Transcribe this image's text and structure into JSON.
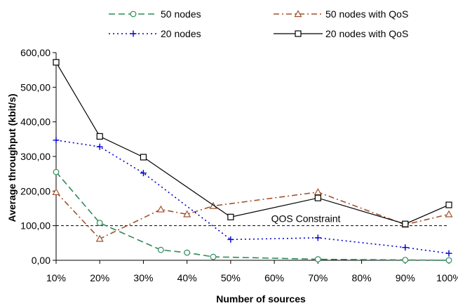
{
  "chart_data": {
    "type": "line",
    "xlabel": "Number of sources",
    "ylabel": "Average throughput (kbit/s)",
    "ylim": [
      0,
      600
    ],
    "yticks": [
      "0,00",
      "100,00",
      "200,00",
      "300,00",
      "400,00",
      "500,00",
      "600,00"
    ],
    "ytick_values": [
      0,
      100,
      200,
      300,
      400,
      500,
      600
    ],
    "xlim": [
      10,
      100
    ],
    "xticks": [
      "10%",
      "20%",
      "30%",
      "40%",
      "50%",
      "60%",
      "70%",
      "80%",
      "90%",
      "100%"
    ],
    "xtick_values": [
      10,
      20,
      30,
      40,
      50,
      60,
      70,
      80,
      90,
      100
    ],
    "grid": false,
    "legend_position": "top",
    "series": [
      {
        "name": "50 nodes",
        "color": "#2e8b57",
        "dash": "dashed",
        "marker": "circle",
        "x": [
          10,
          20,
          34,
          40,
          46,
          70,
          90,
          100
        ],
        "y": [
          255,
          108,
          30,
          22,
          10,
          3,
          1,
          0
        ]
      },
      {
        "name": "50 nodes with QoS",
        "color": "#a0522d",
        "dash": "dashdot",
        "marker": "triangle",
        "x": [
          10,
          20,
          34,
          40,
          46,
          70,
          90,
          100
        ],
        "y": [
          197,
          62,
          147,
          133,
          157,
          197,
          103,
          133
        ]
      },
      {
        "name": "20 nodes",
        "color": "#0000cc",
        "dash": "dotted",
        "marker": "plus",
        "x": [
          10,
          20,
          30,
          50,
          70,
          90,
          100
        ],
        "y": [
          347,
          328,
          252,
          60,
          65,
          37,
          20
        ]
      },
      {
        "name": "20 nodes with QoS",
        "color": "#000000",
        "dash": "solid",
        "marker": "square",
        "x": [
          10,
          20,
          30,
          50,
          70,
          90,
          100
        ],
        "y": [
          572,
          358,
          298,
          125,
          180,
          105,
          160
        ]
      }
    ],
    "annotations": [
      {
        "label": "QOS Constraint",
        "y": 100,
        "color": "#000000",
        "dash": "dashed"
      }
    ]
  }
}
